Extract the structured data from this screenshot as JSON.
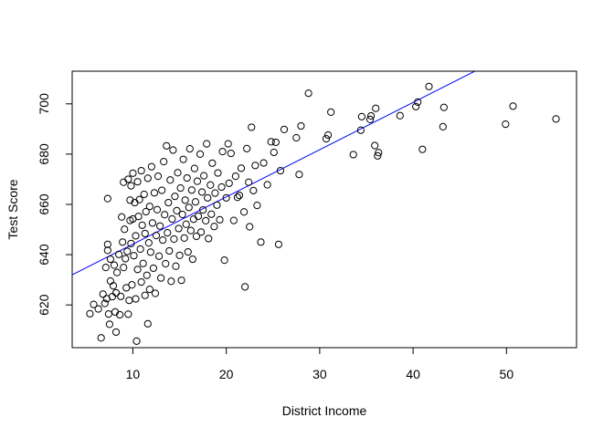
{
  "chart_data": {
    "type": "scatter",
    "title": "",
    "xlabel": "District Income",
    "ylabel": "Test Score",
    "xlim": [
      3.5,
      57.5
    ],
    "ylim": [
      603,
      713
    ],
    "xticks": [
      10,
      20,
      30,
      40,
      50
    ],
    "yticks": [
      620,
      640,
      660,
      680,
      700
    ],
    "grid": false,
    "legend": "none",
    "point_style": "open-circle",
    "point_color": "#000000",
    "trend_line": {
      "color": "#0000ff",
      "intercept": 625.4,
      "slope": 1.879
    },
    "series": [
      {
        "values": [
          [
            5.4,
            616.5
          ],
          [
            5.8,
            620.2
          ],
          [
            6.3,
            618.4
          ],
          [
            6.6,
            606.9
          ],
          [
            6.8,
            624.3
          ],
          [
            7.0,
            620.6
          ],
          [
            7.1,
            634.9
          ],
          [
            7.2,
            622.5
          ],
          [
            7.3,
            641.7
          ],
          [
            7.3,
            644.1
          ],
          [
            7.3,
            662.3
          ],
          [
            7.4,
            616.4
          ],
          [
            7.5,
            612.3
          ],
          [
            7.6,
            629.5
          ],
          [
            7.6,
            638.2
          ],
          [
            7.8,
            623.3
          ],
          [
            7.9,
            627.6
          ],
          [
            8.0,
            635.8
          ],
          [
            8.1,
            617.2
          ],
          [
            8.2,
            609.2
          ],
          [
            8.2,
            624.8
          ],
          [
            8.3,
            632.9
          ],
          [
            8.5,
            640.1
          ],
          [
            8.6,
            616.1
          ],
          [
            8.7,
            623.4
          ],
          [
            8.8,
            655.0
          ],
          [
            8.9,
            645.0
          ],
          [
            9.0,
            634.9
          ],
          [
            9.0,
            668.8
          ],
          [
            9.1,
            650.1
          ],
          [
            9.2,
            638.4
          ],
          [
            9.3,
            626.8
          ],
          [
            9.4,
            641.3
          ],
          [
            9.5,
            616.3
          ],
          [
            9.5,
            670.0
          ],
          [
            9.6,
            621.8
          ],
          [
            9.7,
            653.6
          ],
          [
            9.7,
            661.7
          ],
          [
            9.8,
            644.4
          ],
          [
            9.8,
            667.4
          ],
          [
            9.9,
            628.0
          ],
          [
            10.0,
            654.2
          ],
          [
            10.0,
            672.4
          ],
          [
            10.1,
            639.6
          ],
          [
            10.2,
            660.7
          ],
          [
            10.3,
            622.4
          ],
          [
            10.3,
            647.5
          ],
          [
            10.4,
            605.6
          ],
          [
            10.5,
            634.1
          ],
          [
            10.5,
            669.0
          ],
          [
            10.6,
            655.2
          ],
          [
            10.7,
            661.9
          ],
          [
            10.8,
            642.2
          ],
          [
            10.9,
            629.1
          ],
          [
            10.9,
            673.4
          ],
          [
            11.0,
            651.7
          ],
          [
            11.1,
            636.5
          ],
          [
            11.2,
            664.0
          ],
          [
            11.3,
            623.8
          ],
          [
            11.3,
            648.4
          ],
          [
            11.4,
            657.1
          ],
          [
            11.5,
            631.8
          ],
          [
            11.6,
            612.5
          ],
          [
            11.6,
            670.4
          ],
          [
            11.7,
            644.7
          ],
          [
            11.8,
            626.2
          ],
          [
            11.8,
            659.2
          ],
          [
            11.9,
            641.0
          ],
          [
            12.0,
            675.0
          ],
          [
            12.1,
            652.6
          ],
          [
            12.2,
            634.6
          ],
          [
            12.3,
            664.6
          ],
          [
            12.4,
            624.6
          ],
          [
            12.5,
            647.6
          ],
          [
            12.6,
            657.9
          ],
          [
            12.7,
            671.2
          ],
          [
            12.8,
            639.4
          ],
          [
            12.9,
            651.4
          ],
          [
            13.0,
            630.7
          ],
          [
            13.1,
            665.6
          ],
          [
            13.2,
            645.8
          ],
          [
            13.3,
            677.0
          ],
          [
            13.4,
            655.9
          ],
          [
            13.5,
            636.4
          ],
          [
            13.6,
            683.3
          ],
          [
            13.7,
            648.7
          ],
          [
            13.8,
            660.7
          ],
          [
            13.9,
            641.5
          ],
          [
            14.0,
            669.7
          ],
          [
            14.1,
            629.4
          ],
          [
            14.2,
            654.2
          ],
          [
            14.3,
            681.6
          ],
          [
            14.4,
            646.2
          ],
          [
            14.5,
            663.2
          ],
          [
            14.6,
            635.4
          ],
          [
            14.7,
            657.5
          ],
          [
            14.8,
            672.6
          ],
          [
            14.9,
            650.4
          ],
          [
            15.0,
            639.7
          ],
          [
            15.1,
            666.5
          ],
          [
            15.2,
            629.8
          ],
          [
            15.3,
            656.0
          ],
          [
            15.4,
            677.9
          ],
          [
            15.5,
            646.6
          ],
          [
            15.6,
            661.7
          ],
          [
            15.7,
            652.1
          ],
          [
            15.8,
            670.5
          ],
          [
            15.9,
            641.1
          ],
          [
            16.0,
            658.8
          ],
          [
            16.1,
            682.1
          ],
          [
            16.2,
            649.6
          ],
          [
            16.3,
            665.7
          ],
          [
            16.4,
            638.2
          ],
          [
            16.5,
            654.1
          ],
          [
            16.6,
            674.3
          ],
          [
            16.7,
            661.0
          ],
          [
            16.8,
            647.3
          ],
          [
            16.9,
            669.2
          ],
          [
            17.0,
            655.3
          ],
          [
            17.2,
            680.0
          ],
          [
            17.3,
            649.0
          ],
          [
            17.4,
            664.9
          ],
          [
            17.5,
            657.8
          ],
          [
            17.6,
            671.4
          ],
          [
            17.8,
            653.5
          ],
          [
            17.9,
            684.1
          ],
          [
            18.0,
            662.6
          ],
          [
            18.1,
            646.4
          ],
          [
            18.3,
            667.7
          ],
          [
            18.4,
            656.1
          ],
          [
            18.5,
            676.4
          ],
          [
            18.7,
            651.2
          ],
          [
            18.8,
            664.5
          ],
          [
            19.0,
            659.7
          ],
          [
            19.1,
            672.5
          ],
          [
            19.3,
            653.9
          ],
          [
            19.5,
            666.9
          ],
          [
            19.6,
            681.0
          ],
          [
            19.8,
            637.8
          ],
          [
            20.0,
            662.6
          ],
          [
            20.2,
            684.1
          ],
          [
            20.3,
            668.4
          ],
          [
            20.5,
            680.3
          ],
          [
            20.8,
            653.6
          ],
          [
            21.0,
            671.2
          ],
          [
            21.2,
            662.8
          ],
          [
            21.4,
            663.6
          ],
          [
            21.6,
            674.4
          ],
          [
            21.9,
            657.0
          ],
          [
            22.0,
            627.2
          ],
          [
            22.2,
            682.2
          ],
          [
            22.4,
            668.8
          ],
          [
            22.5,
            651.1
          ],
          [
            22.7,
            690.7
          ],
          [
            22.9,
            665.5
          ],
          [
            23.1,
            675.5
          ],
          [
            23.3,
            659.6
          ],
          [
            23.7,
            645.0
          ],
          [
            24.0,
            676.5
          ],
          [
            24.4,
            667.8
          ],
          [
            24.8,
            684.9
          ],
          [
            25.1,
            680.7
          ],
          [
            25.3,
            684.7
          ],
          [
            25.6,
            644.1
          ],
          [
            25.8,
            673.4
          ],
          [
            26.2,
            689.8
          ],
          [
            27.5,
            686.5
          ],
          [
            27.8,
            671.9
          ],
          [
            28.0,
            691.2
          ],
          [
            28.8,
            704.2
          ],
          [
            30.7,
            686.1
          ],
          [
            30.9,
            687.6
          ],
          [
            31.2,
            696.7
          ],
          [
            33.6,
            679.8
          ],
          [
            34.4,
            689.5
          ],
          [
            34.5,
            694.9
          ],
          [
            35.4,
            693.8
          ],
          [
            35.5,
            695.2
          ],
          [
            35.9,
            683.4
          ],
          [
            36.0,
            698.2
          ],
          [
            36.2,
            679.3
          ],
          [
            36.3,
            680.6
          ],
          [
            38.6,
            695.3
          ],
          [
            40.3,
            698.9
          ],
          [
            40.5,
            700.7
          ],
          [
            41.0,
            681.9
          ],
          [
            41.7,
            706.9
          ],
          [
            43.2,
            690.9
          ],
          [
            43.3,
            698.6
          ],
          [
            49.9,
            691.9
          ],
          [
            50.7,
            699.1
          ],
          [
            55.3,
            694.0
          ]
        ]
      }
    ]
  }
}
